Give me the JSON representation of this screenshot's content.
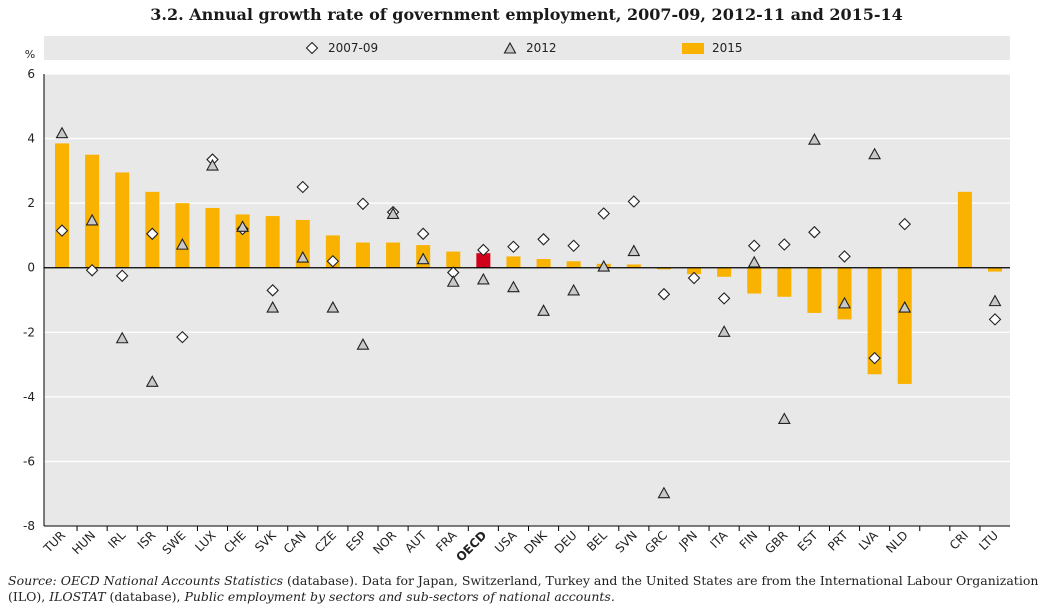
{
  "chart_data": {
    "type": "bar",
    "title": "3.2. Annual growth rate of government employment, 2007-09, 2012-11 and 2015-14",
    "ylabel": "%",
    "ylim": [
      -8,
      6
    ],
    "yticks": [
      6,
      4,
      2,
      0,
      -2,
      -4,
      -6,
      -8
    ],
    "highlight_category": "OECD",
    "colors": {
      "bar": "#f9b200",
      "highlight": "#d0021b",
      "legend_bg": "#e8e8e8",
      "marker_fill": "#c8c8c8"
    },
    "legend": [
      {
        "name": "2007-09",
        "marker": "diamond"
      },
      {
        "name": "2012",
        "marker": "triangle"
      },
      {
        "name": "2015",
        "marker": "bar"
      }
    ],
    "legend_position": "top",
    "categories": [
      "TUR",
      "HUN",
      "IRL",
      "ISR",
      "SWE",
      "LUX",
      "CHE",
      "SVK",
      "CAN",
      "CZE",
      "ESP",
      "NOR",
      "AUT",
      "FRA",
      "OECD",
      "USA",
      "DNK",
      "DEU",
      "BEL",
      "SVN",
      "GRC",
      "JPN",
      "ITA",
      "FIN",
      "GBR",
      "EST",
      "PRT",
      "LVA",
      "NLD",
      "",
      "CRI",
      "LTU"
    ],
    "series": [
      {
        "name": "2015",
        "type": "bar",
        "values": [
          3.85,
          3.5,
          2.95,
          2.35,
          2.0,
          1.85,
          1.65,
          1.6,
          1.48,
          1.0,
          0.78,
          0.78,
          0.7,
          0.5,
          0.45,
          0.35,
          0.27,
          0.2,
          0.12,
          0.1,
          -0.05,
          -0.2,
          -0.28,
          -0.8,
          -0.9,
          -1.4,
          -1.6,
          -3.3,
          -3.6,
          null,
          2.35,
          -0.12
        ]
      },
      {
        "name": "2007-09",
        "type": "diamond",
        "values": [
          1.15,
          -0.08,
          -0.25,
          1.05,
          -2.15,
          3.35,
          1.2,
          -0.7,
          2.5,
          0.2,
          1.98,
          1.72,
          1.05,
          -0.15,
          0.55,
          0.65,
          0.88,
          0.68,
          1.68,
          2.05,
          -0.82,
          -0.32,
          -0.95,
          0.68,
          0.72,
          1.1,
          0.35,
          -2.8,
          1.35,
          null,
          null,
          -1.6
        ]
      },
      {
        "name": "2012",
        "type": "triangle",
        "values": [
          4.15,
          1.45,
          -2.2,
          -3.55,
          0.7,
          3.15,
          1.25,
          -1.25,
          0.3,
          -1.25,
          -2.4,
          1.65,
          0.25,
          -0.45,
          -0.38,
          -0.62,
          -1.35,
          -0.72,
          0.02,
          0.5,
          -7.0,
          null,
          -2.0,
          0.15,
          -4.7,
          3.95,
          -1.12,
          3.5,
          -1.25,
          null,
          null,
          -1.05
        ]
      }
    ]
  },
  "source_note": {
    "prefix": "Source: ",
    "db1": "OECD National Accounts Statistics",
    "mid": " (database). Data for Japan, Switzerland, Turkey and the United States are from the International Labour Organization (ILO), ",
    "db2": "ILOSTAT",
    "mid2": " (database), ",
    "tail": "Public employment by sectors and sub-sectors of national accounts."
  }
}
